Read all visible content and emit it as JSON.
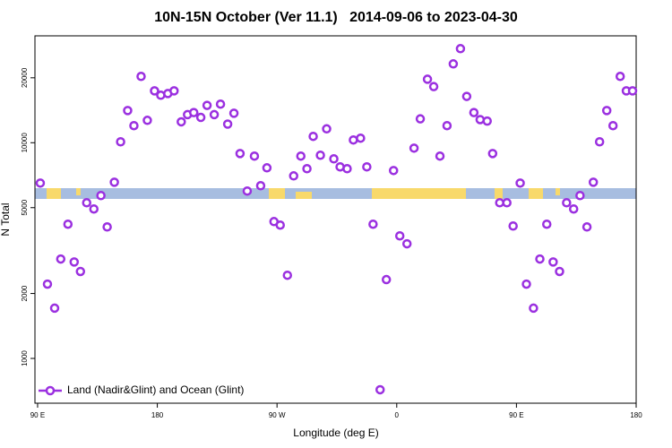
{
  "chart_data": {
    "type": "scatter",
    "title": "10N-15N October (Ver 11.1)   2014-09-06 to 2023-04-30",
    "x_label": "Longitude (deg E)",
    "y_label": "N Total",
    "log_y": true,
    "legend": "bottom-left",
    "xlim": [
      88,
      540
    ],
    "ylim": [
      620,
      31300
    ],
    "xticks": [
      {
        "value": 90,
        "label": "90 E"
      },
      {
        "value": 180,
        "label": "180"
      },
      {
        "value": 270,
        "label": "90 W"
      },
      {
        "value": 360,
        "label": "0"
      },
      {
        "value": 450,
        "label": "90 E"
      },
      {
        "value": 540,
        "label": "180"
      }
    ],
    "yticks": [
      1000,
      2000,
      5000,
      10000,
      20000
    ],
    "series": [
      {
        "name": "Land (Nadir&Glint) and Ocean (Glint)",
        "color": "#9b30e0",
        "x": [
          92,
          97.4,
          102.8,
          107.4,
          112.8,
          117.5,
          122.2,
          126.9,
          132.3,
          137.6,
          142.3,
          147.7,
          152.4,
          157.7,
          162.4,
          167.8,
          172.5,
          177.9,
          182.6,
          187.9,
          192.6,
          198.0,
          202.7,
          207.4,
          212.7,
          217.4,
          222.8,
          227.5,
          232.9,
          237.6,
          242.2,
          247.6,
          253.0,
          257.7,
          262.4,
          267.7,
          272.4,
          277.8,
          282.5,
          287.9,
          292.5,
          297.2,
          302.6,
          307.3,
          312.7,
          317.4,
          322.7,
          327.4,
          332.8,
          337.5,
          342.2,
          347.5,
          352.2,
          357.6,
          362.3,
          367.7,
          373.0,
          377.7,
          383.1,
          387.8,
          392.5,
          397.8,
          402.5,
          407.9,
          412.6,
          418.0,
          422.7,
          428.0,
          432.1,
          437.4,
          442.8,
          447.5,
          452.8,
          457.5,
          462.8,
          467.6,
          472.8,
          477.6,
          482.4,
          487.7,
          493.0,
          497.8,
          503.0,
          507.8,
          512.5,
          517.9,
          522.6,
          528.0,
          532.6,
          537.3
        ],
        "values": [
          6500,
          2210,
          1710,
          2890,
          4190,
          2800,
          2530,
          5270,
          4930,
          5690,
          4070,
          6560,
          10100,
          14100,
          12000,
          20300,
          12700,
          17400,
          16600,
          16900,
          17400,
          12500,
          13500,
          13800,
          13100,
          14900,
          13500,
          15100,
          12200,
          13700,
          8910,
          5970,
          8670,
          6320,
          7650,
          4310,
          4150,
          2430,
          7020,
          8670,
          7580,
          10700,
          8750,
          11600,
          8420,
          7730,
          7580,
          10300,
          10500,
          7730,
          4190,
          716,
          2320,
          7430,
          3700,
          3400,
          9440,
          12900,
          19700,
          18200,
          8670,
          12000,
          23200,
          27300,
          16400,
          13800,
          12800,
          12600,
          8910,
          5270,
          5270,
          4110,
          6500,
          2210,
          1710,
          2890,
          4190,
          2800,
          2530,
          5270,
          4930,
          5690,
          4070,
          6560,
          10100,
          14100,
          12000,
          20300,
          17400,
          17400
        ]
      }
    ]
  }
}
